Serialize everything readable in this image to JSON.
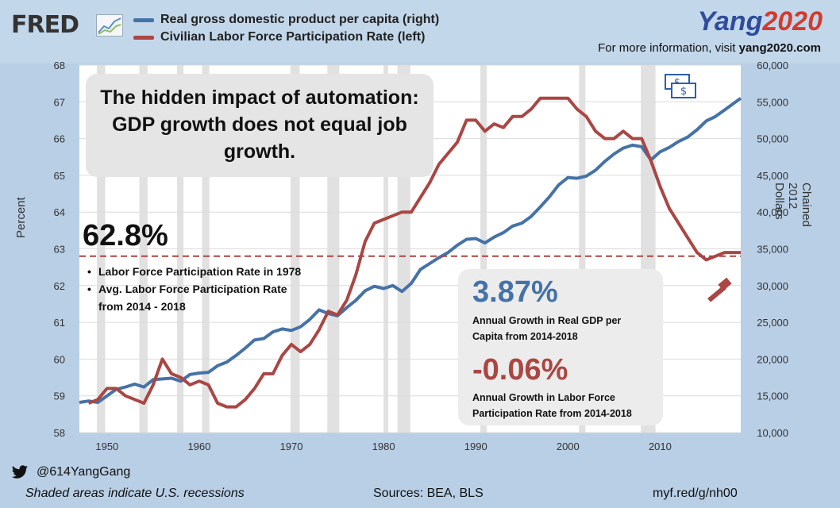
{
  "header": {
    "logo_text": "FRED",
    "legend": [
      {
        "label": "Real gross domestic product per capita (right)",
        "color": "#4572a7"
      },
      {
        "label": "Civilian Labor Force Participation Rate (left)",
        "color": "#aa4643"
      }
    ],
    "brand_part1": "Yang",
    "brand_part2": "2020",
    "visit_prefix": "For more information, visit ",
    "visit_site": "yang2020.com"
  },
  "annotations": {
    "callout_line1": "The hidden impact of automation:",
    "callout_line2": "GDP growth does not equal job",
    "callout_line3": "growth.",
    "big_pct": "62.8%",
    "bullet1": "Labor Force Participation Rate in 1978",
    "bullet2a": "Avg. Labor Force Participation Rate",
    "bullet2b": "from 2014 - 2018",
    "stat1_value": "3.87%",
    "stat1_desc_a": "Annual Growth in Real GDP per",
    "stat1_desc_b": "Capita from 2014-2018",
    "stat2_value": "-0.06%",
    "stat2_desc_a": "Annual Growth in Labor Force",
    "stat2_desc_b": "Participation Rate from 2014-2018",
    "money_icon": "money-bills-icon",
    "hammer_icon": "hammer-icon"
  },
  "footer": {
    "twitter_handle": "@614YangGang",
    "note": "Shaded areas indicate U.S. recessions",
    "sources": "Sources: BEA, BLS",
    "url": "myf.red/g/nh00"
  },
  "chart_data": {
    "type": "line",
    "ylabel_left": "Percent",
    "ylabel_right": "Chained 2012 Dollars",
    "xlim": [
      1947,
      2018.75
    ],
    "ylim_left": [
      58,
      68
    ],
    "ylim_right": [
      10000,
      60000
    ],
    "x_ticks": [
      1950,
      1960,
      1970,
      1980,
      1990,
      2000,
      2010
    ],
    "y_ticks_left": [
      58,
      59,
      60,
      61,
      62,
      63,
      64,
      65,
      66,
      67,
      68
    ],
    "y_ticks_right": [
      "10,000",
      "15,000",
      "20,000",
      "25,000",
      "30,000",
      "35,000",
      "40,000",
      "45,000",
      "50,000",
      "55,000",
      "60,000"
    ],
    "reference_line": {
      "axis": "left",
      "value": 62.8,
      "style": "dashed",
      "color": "#aa4643"
    },
    "recessions": [
      [
        1948.9,
        1949.8
      ],
      [
        1953.5,
        1954.4
      ],
      [
        1957.6,
        1958.3
      ],
      [
        1960.3,
        1961.1
      ],
      [
        1969.9,
        1970.9
      ],
      [
        1973.9,
        1975.2
      ],
      [
        1980.0,
        1980.5
      ],
      [
        1981.5,
        1982.9
      ],
      [
        1990.5,
        1991.2
      ],
      [
        2001.2,
        2001.9
      ],
      [
        2007.9,
        2009.5
      ]
    ],
    "series": [
      {
        "name": "Real gross domestic product per capita (right)",
        "axis": "right",
        "color": "#4572a7",
        "x": [
          1947,
          1948,
          1949,
          1950,
          1951,
          1952,
          1953,
          1954,
          1955,
          1956,
          1957,
          1958,
          1959,
          1960,
          1961,
          1962,
          1963,
          1964,
          1965,
          1966,
          1967,
          1968,
          1969,
          1970,
          1971,
          1972,
          1973,
          1974,
          1975,
          1976,
          1977,
          1978,
          1979,
          1980,
          1981,
          1982,
          1983,
          1984,
          1985,
          1986,
          1987,
          1988,
          1989,
          1990,
          1991,
          1992,
          1993,
          1994,
          1995,
          1996,
          1997,
          1998,
          1999,
          2000,
          2001,
          2002,
          2003,
          2004,
          2005,
          2006,
          2007,
          2008,
          2009,
          2010,
          2011,
          2012,
          2013,
          2014,
          2015,
          2016,
          2017,
          2018.75
        ],
        "values": [
          14100,
          14300,
          14100,
          15000,
          15900,
          16200,
          16600,
          16200,
          17200,
          17300,
          17400,
          17000,
          17900,
          18100,
          18200,
          19100,
          19600,
          20500,
          21500,
          22600,
          22800,
          23700,
          24100,
          23900,
          24400,
          25400,
          26700,
          26200,
          25900,
          27000,
          28000,
          29300,
          29900,
          29600,
          30000,
          29200,
          30300,
          32200,
          33000,
          33800,
          34500,
          35500,
          36300,
          36400,
          35800,
          36600,
          37200,
          38100,
          38500,
          39400,
          40700,
          42100,
          43700,
          44700,
          44600,
          44900,
          45700,
          46900,
          47900,
          48700,
          49100,
          48900,
          47100,
          48200,
          48800,
          49600,
          50200,
          51200,
          52400,
          53000,
          53900,
          55500
        ]
      },
      {
        "name": "Civilian Labor Force Participation Rate (left)",
        "axis": "left",
        "color": "#aa4643",
        "x": [
          1948,
          1949,
          1950,
          1951,
          1952,
          1953,
          1954,
          1955,
          1956,
          1957,
          1958,
          1959,
          1960,
          1961,
          1962,
          1963,
          1964,
          1965,
          1966,
          1967,
          1968,
          1969,
          1970,
          1971,
          1972,
          1973,
          1974,
          1975,
          1976,
          1977,
          1978,
          1979,
          1980,
          1981,
          1982,
          1983,
          1984,
          1985,
          1986,
          1987,
          1988,
          1989,
          1990,
          1991,
          1992,
          1993,
          1994,
          1995,
          1996,
          1997,
          1998,
          1999,
          2000,
          2001,
          2002,
          2003,
          2004,
          2005,
          2006,
          2007,
          2008,
          2009,
          2010,
          2011,
          2012,
          2013,
          2014,
          2015,
          2016,
          2017,
          2018.75
        ],
        "values": [
          58.8,
          58.9,
          59.2,
          59.2,
          59.0,
          58.9,
          58.8,
          59.3,
          60.0,
          59.6,
          59.5,
          59.3,
          59.4,
          59.3,
          58.8,
          58.7,
          58.7,
          58.9,
          59.2,
          59.6,
          59.6,
          60.1,
          60.4,
          60.2,
          60.4,
          60.8,
          61.3,
          61.2,
          61.6,
          62.3,
          63.2,
          63.7,
          63.8,
          63.9,
          64.0,
          64.0,
          64.4,
          64.8,
          65.3,
          65.6,
          65.9,
          66.5,
          66.5,
          66.2,
          66.4,
          66.3,
          66.6,
          66.6,
          66.8,
          67.1,
          67.1,
          67.1,
          67.1,
          66.8,
          66.6,
          66.2,
          66.0,
          66.0,
          66.2,
          66.0,
          66.0,
          65.4,
          64.7,
          64.1,
          63.7,
          63.3,
          62.9,
          62.7,
          62.8,
          62.9,
          62.9
        ]
      }
    ]
  }
}
